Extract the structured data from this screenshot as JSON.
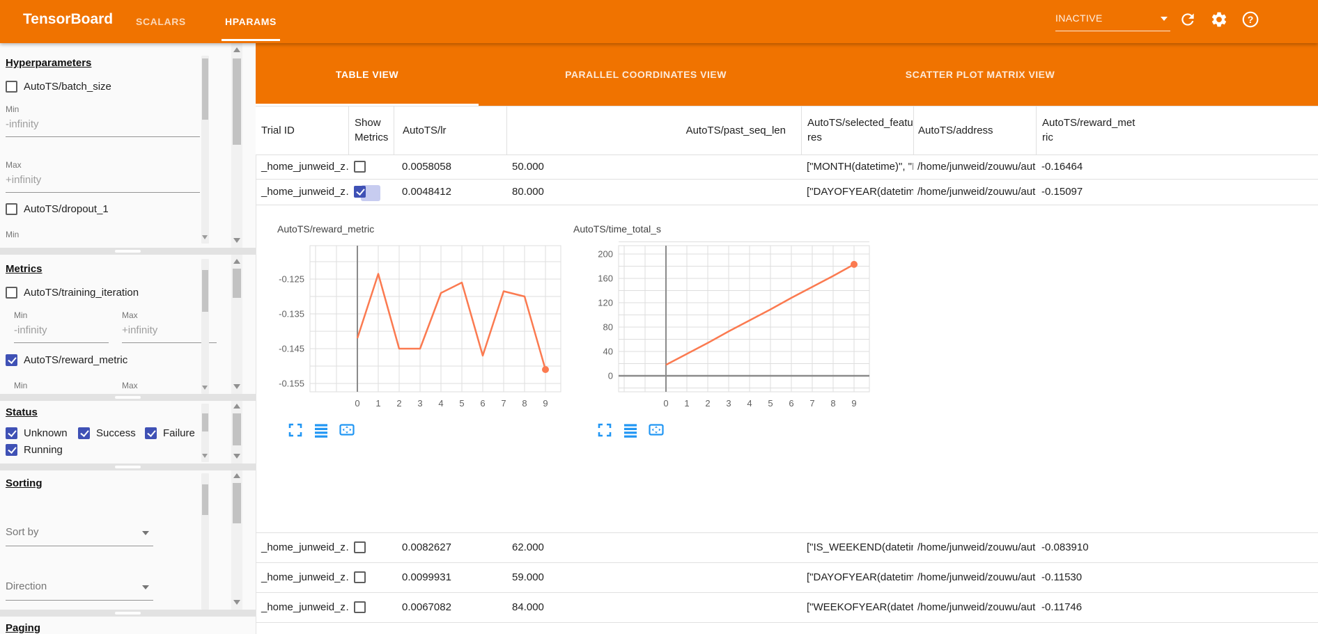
{
  "app_bar": {
    "title": "TensorBoard",
    "nav_tabs": [
      {
        "label": "SCALARS",
        "active": false
      },
      {
        "label": "HPARAMS",
        "active": true
      }
    ],
    "run_selector": {
      "value": "INACTIVE"
    },
    "colors": {
      "bar": "#F07300",
      "accent_indigo": "#3F51B5",
      "icon_blue": "#2196F3",
      "line_orange": "#FB7A50"
    }
  },
  "sidebar": {
    "hyperparameters": {
      "title": "Hyperparameters",
      "items": [
        {
          "label": "AutoTS/batch_size",
          "checked": false
        },
        {
          "label": "AutoTS/dropout_1",
          "checked": false
        }
      ],
      "fields": [
        {
          "label": "Min",
          "value": "-infinity"
        },
        {
          "label": "Max",
          "value": "+infinity"
        },
        {
          "label": "Min",
          "value": ""
        }
      ]
    },
    "metrics": {
      "title": "Metrics",
      "items": [
        {
          "label": "AutoTS/training_iteration",
          "checked": false,
          "min_label": "Min",
          "min": "-infinity",
          "max_label": "Max",
          "max": "+infinity"
        },
        {
          "label": "AutoTS/reward_metric",
          "checked": true,
          "min_label": "Min",
          "max_label": "Max"
        }
      ]
    },
    "status": {
      "title": "Status",
      "options": [
        {
          "label": "Unknown",
          "checked": true
        },
        {
          "label": "Success",
          "checked": true
        },
        {
          "label": "Failure",
          "checked": true
        },
        {
          "label": "Running",
          "checked": true
        }
      ]
    },
    "sorting": {
      "title": "Sorting",
      "sort_by": "Sort by",
      "direction": "Direction"
    },
    "paging": {
      "title": "Paging"
    }
  },
  "main": {
    "view_tabs": [
      {
        "label": "TABLE VIEW",
        "active": true
      },
      {
        "label": "PARALLEL COORDINATES VIEW",
        "active": false
      },
      {
        "label": "SCATTER PLOT MATRIX VIEW",
        "active": false
      }
    ],
    "table": {
      "columns": [
        "Trial ID",
        "Show Metrics",
        "AutoTS/lr",
        "AutoTS/past_seq_len",
        "AutoTS/selected_features",
        "AutoTS/address",
        "AutoTS/reward_metric"
      ],
      "rows": [
        {
          "trial_id": "_home_junweid_z…",
          "show_metrics": false,
          "lr": "0.0058058",
          "past_seq_len": "50.000",
          "selected_features": "[\"MONTH(datetime)\", \"I…",
          "address": "/home/junweid/zouwu/aut…",
          "reward_metric": "-0.16464"
        },
        {
          "trial_id": "_home_junweid_z…",
          "show_metrics": true,
          "lr": "0.0048412",
          "past_seq_len": "80.000",
          "selected_features": "[\"DAYOFYEAR(datetime…",
          "address": "/home/junweid/zouwu/aut…",
          "reward_metric": "-0.15097"
        },
        {
          "trial_id": "_home_junweid_z…",
          "show_metrics": false,
          "lr": "0.0082627",
          "past_seq_len": "62.000",
          "selected_features": "[\"IS_WEEKEND(datetim…",
          "address": "/home/junweid/zouwu/aut…",
          "reward_metric": "-0.083910"
        },
        {
          "trial_id": "_home_junweid_z…",
          "show_metrics": false,
          "lr": "0.0099931",
          "past_seq_len": "59.000",
          "selected_features": "[\"DAYOFYEAR(datetime…",
          "address": "/home/junweid/zouwu/aut…",
          "reward_metric": "-0.11530"
        },
        {
          "trial_id": "_home_junweid_z…",
          "show_metrics": false,
          "lr": "0.0067082",
          "past_seq_len": "84.000",
          "selected_features": "[\"WEEKOFYEAR(dateti…",
          "address": "/home/junweid/zouwu/aut…",
          "reward_metric": "-0.11746"
        }
      ]
    }
  },
  "chart_data": [
    {
      "type": "line",
      "title": "AutoTS/reward_metric",
      "x": [
        0,
        1,
        2,
        3,
        4,
        5,
        6,
        7,
        8,
        9
      ],
      "values": [
        -0.142,
        -0.1235,
        -0.145,
        -0.145,
        -0.129,
        -0.126,
        -0.147,
        -0.1285,
        -0.13,
        -0.151
      ],
      "y_ticks": [
        "-0.125",
        "-0.135",
        "-0.145",
        "-0.155"
      ],
      "y_tick_values": [
        -0.125,
        -0.135,
        -0.145,
        -0.155
      ],
      "xlabel": "",
      "ylabel": "",
      "ylim": [
        -0.1574,
        -0.1154
      ],
      "grid": true,
      "line_color": "#FB7A50",
      "endpoint_dot": true
    },
    {
      "type": "line",
      "title": "AutoTS/time_total_s",
      "x": [
        0,
        1,
        2,
        3,
        4,
        5,
        6,
        7,
        8,
        9
      ],
      "values": [
        18,
        36,
        54,
        73,
        91,
        109,
        128,
        146,
        164,
        183
      ],
      "y_ticks": [
        "200",
        "160",
        "120",
        "80",
        "40",
        "0"
      ],
      "y_tick_values": [
        200,
        160,
        120,
        80,
        40,
        0
      ],
      "xlabel": "",
      "ylabel": "",
      "ylim": [
        -26,
        214
      ],
      "grid": true,
      "line_color": "#FB7A50",
      "endpoint_dot": true
    }
  ]
}
